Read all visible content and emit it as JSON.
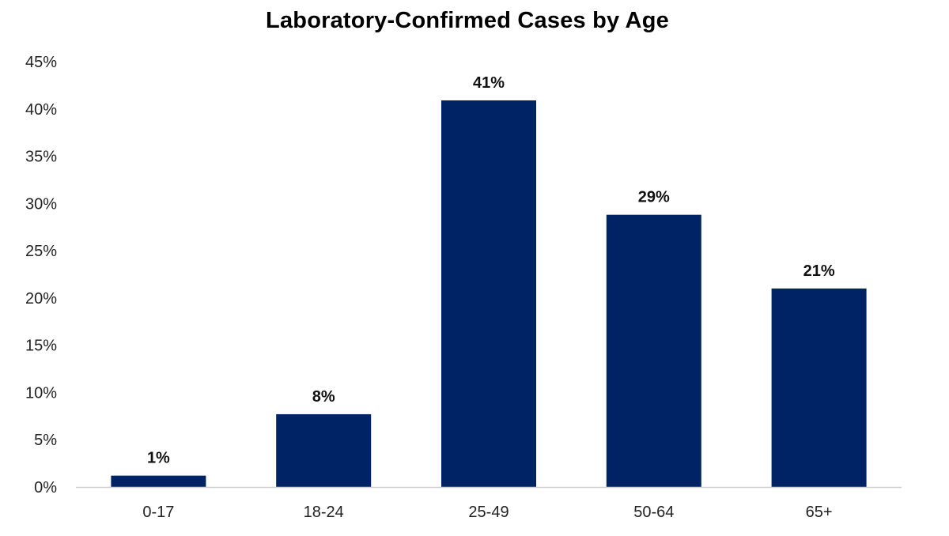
{
  "chart_data": {
    "type": "bar",
    "title": "Laboratory-Confirmed Cases by Age",
    "xlabel": "",
    "ylabel": "",
    "categories": [
      "0-17",
      "18-24",
      "25-49",
      "50-64",
      "65+"
    ],
    "values": [
      1.2,
      7.7,
      40.9,
      28.8,
      21.0
    ],
    "data_labels": [
      "1%",
      "8%",
      "41%",
      "29%",
      "21%"
    ],
    "ylim": [
      0,
      45
    ],
    "yticks": [
      0,
      5,
      10,
      15,
      20,
      25,
      30,
      35,
      40,
      45
    ],
    "ytick_labels": [
      "0%",
      "5%",
      "10%",
      "15%",
      "20%",
      "25%",
      "30%",
      "35%",
      "40%",
      "45%"
    ],
    "grid": false,
    "legend": "none",
    "bar_color": "#002366",
    "axis_color": "#d0d0d0"
  }
}
